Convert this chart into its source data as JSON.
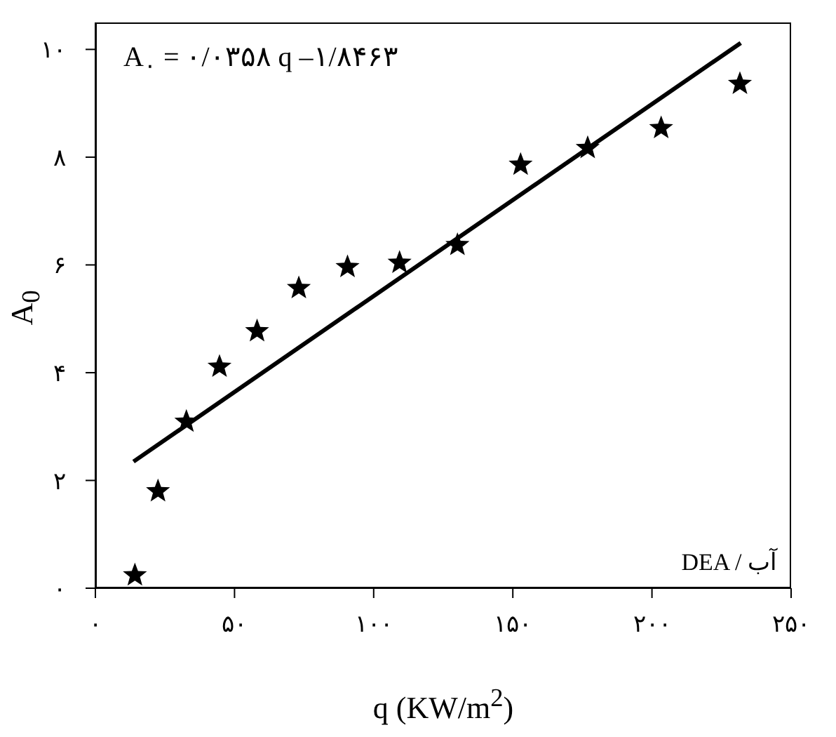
{
  "chart_data": {
    "type": "scatter",
    "xlabel": "q (KW/m$^{2}$)",
    "ylabel": "A$_{0}$",
    "annotations": [
      "A$_{٠}$ = ٠/٠٣۵٨ q –١/٨۴۶٣",
      "DEA / آب"
    ],
    "x": [
      14.2,
      22.5,
      32.7,
      44.6,
      58.1,
      73.1,
      90.6,
      109.3,
      130.1,
      152.8,
      176.9,
      203.3,
      231.6
    ],
    "series": [
      {
        "color": "#000000",
        "marker": "star",
        "values": [
          0.24,
          1.8,
          3.09,
          4.11,
          4.77,
          5.57,
          5.96,
          6.04,
          6.37,
          7.86,
          8.17,
          8.54,
          9.36
        ]
      },
      {
        "type": "line",
        "color": "#000000",
        "marker": "none",
        "line_style": "solid",
        "x": [
          13.7,
          231.9
        ],
        "values": [
          2.35,
          10.12
        ]
      }
    ],
    "xlim": [
      0,
      250
    ],
    "ylim": [
      0,
      10.5
    ],
    "xticks": [
      {
        "value": 0,
        "label": "٠"
      },
      {
        "value": 50,
        "label": "۵٠"
      },
      {
        "value": 100,
        "label": "١٠٠"
      },
      {
        "value": 150,
        "label": "١۵٠"
      },
      {
        "value": 200,
        "label": "٢٠٠"
      },
      {
        "value": 250,
        "label": "٢۵٠"
      }
    ],
    "yticks": [
      {
        "value": 0,
        "label": "٠"
      },
      {
        "value": 2,
        "label": "٢"
      },
      {
        "value": 4,
        "label": "۴"
      },
      {
        "value": 6,
        "label": "۶"
      },
      {
        "value": 8,
        "label": "٨"
      },
      {
        "value": 10,
        "label": "١٠"
      }
    ],
    "grid": false,
    "legend": false
  }
}
